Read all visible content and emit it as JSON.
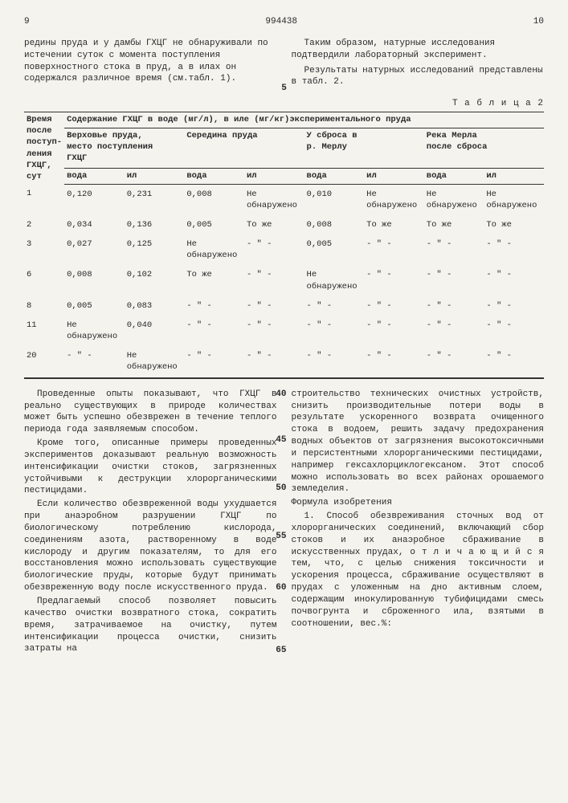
{
  "header": {
    "left_page": "9",
    "doc_num": "994438",
    "right_page": "10"
  },
  "top_left_text": "редины пруда и у дамбы ГХЦГ не обнаруживали по истечении суток с момента поступления поверхностного стока в пруд, а в илах он содержался различное время (см.табл. 1).",
  "top_right_text_1": "Таким образом, натурные исследования подтвердили лабораторный эксперимент.",
  "top_right_text_2": "Результаты натурных исследований представлены в табл. 2.",
  "table_label": "Т а б л и ц а  2",
  "line_marker_5": "5",
  "table": {
    "col0_header_lines": [
      "Время",
      "после",
      "поступ-",
      "ления",
      "ГХЦГ,",
      "сут"
    ],
    "group_header": "Содержание ГХЦГ в воде (мг/л), в иле (мг/кг)экспериментального пруда",
    "groups": [
      {
        "top": "Верховье пруда,",
        "mid": "место поступления",
        "bot": "ГХЦГ"
      },
      {
        "top": "Середина пруда",
        "mid": "",
        "bot": ""
      },
      {
        "top": "У сброса в",
        "mid": "р. Мерлу",
        "bot": ""
      },
      {
        "top": "Река Мерла",
        "mid": "после сброса",
        "bot": ""
      }
    ],
    "sub": [
      "вода",
      "ил"
    ],
    "rows": [
      {
        "t": "1",
        "c": [
          "0,120",
          "0,231",
          "0,008",
          "Не обнаружено",
          "0,010",
          "Не обнаружено",
          "Не обнаружено",
          "Не обнаружено"
        ]
      },
      {
        "t": "2",
        "c": [
          "0,034",
          "0,136",
          "0,005",
          "То же",
          "0,008",
          "То же",
          "То же",
          "То же"
        ]
      },
      {
        "t": "3",
        "c": [
          "0,027",
          "0,125",
          "Не обнаружено",
          "- \" -",
          "0,005",
          "- \" -",
          "- \" -",
          "- \" -"
        ]
      },
      {
        "t": "6",
        "c": [
          "0,008",
          "0,102",
          "То же",
          "- \" -",
          "Не обнаружено",
          "- \" -",
          "- \" -",
          "- \" -"
        ]
      },
      {
        "t": "8",
        "c": [
          "0,005",
          "0,083",
          "- \" -",
          "- \" -",
          "- \" -",
          "- \" -",
          "- \" -",
          "- \" -"
        ]
      },
      {
        "t": "11",
        "c": [
          "Не обнаружено",
          "0,040",
          "- \" -",
          "- \" -",
          "- \" -",
          "- \" -",
          "- \" -",
          "- \" -"
        ]
      },
      {
        "t": "20",
        "c": [
          "- \" -",
          "Не обнаружено",
          "- \" -",
          "- \" -",
          "- \" -",
          "- \" -",
          "- \" -",
          "- \" -"
        ]
      }
    ]
  },
  "bottom": {
    "left": [
      "Проведенные опыты показывают, что ГХЦГ в реально существующих в природе количествах может быть успешно обезврежен в течение теплого периода года заявляемым способом.",
      "Кроме того, описанные примеры проведенных экспериментов доказывают реальную возможность интенсификации очистки стоков, загрязненных устойчивыми к деструкции хлорорганическими пестицидами.",
      "Если количество обезвреженной воды ухудшается при анаэробном разрушении ГХЦГ по биологическому потреблению кислорода, соединениям азота, растворенному в воде кислороду и другим показателям, то для его восстановления можно использовать существующие биологические пруды, которые будут принимать обезвреженную воду после искусственного пруда.",
      "Предлагаемый способ позволяет повысить качество очистки возвратного стока, сократить время, затрачиваемое на очистку, путем интенсификации процесса очистки, снизить затраты на"
    ],
    "right_top": "строительство технических очистных устройств, снизить производительные потери воды в результате ускоренного возврата очищенного стока в водоем, решить задачу предохранения водных объектов от загрязнения высокотоксичными и персистентными хлорорганическими пестицидами, например гексахлорциклогексаном. Этот способ можно использовать во всех районах орошаемого земледелия.",
    "formula_title": "Формула изобретения",
    "right_bottom": "1. Способ обезвреживания сточных вод от хлорорганических соединений, включающий сбор стоков и их анаэробное сбраживание в искусственных прудах, о т л и ч а ю щ и й с я  тем, что, с целью снижения токсичности и ускорения процесса, сбраживание осуществляют в прудах с уложенным на дно активным слоем, содержащим инокулированную тубифицидами смесь почвогрунта и сброженного ила, взятыми в соотношении, вес.%:",
    "line_markers": [
      "40",
      "45",
      "50",
      "55",
      "60",
      "65"
    ]
  }
}
